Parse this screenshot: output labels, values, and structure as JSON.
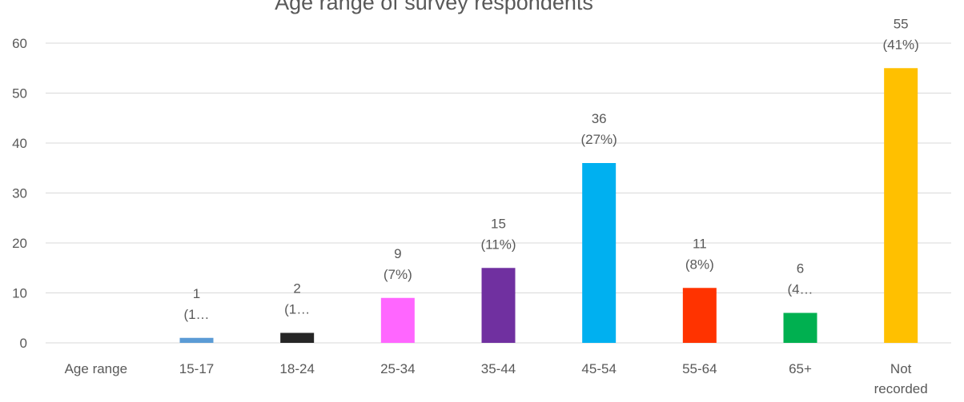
{
  "chart_data": {
    "type": "bar",
    "title": "Age range of survey respondents",
    "categories": [
      "Age range",
      "15-17",
      "18-24",
      "25-34",
      "35-44",
      "45-54",
      "55-64",
      "65+",
      "Not recorded"
    ],
    "category_lines": [
      [
        "Age range"
      ],
      [
        "15-17"
      ],
      [
        "18-24"
      ],
      [
        "25-34"
      ],
      [
        "35-44"
      ],
      [
        "45-54"
      ],
      [
        "55-64"
      ],
      [
        "65+"
      ],
      [
        "Not",
        "recorded"
      ]
    ],
    "values": [
      0,
      1,
      2,
      9,
      15,
      36,
      11,
      6,
      55
    ],
    "value_labels": [
      "",
      "1",
      "2",
      "9",
      "15",
      "36",
      "11",
      "6",
      "55"
    ],
    "percent_labels": [
      "",
      "(1…",
      "(1…",
      "(7%)",
      "(11%)",
      "(27%)",
      "(8%)",
      "(4…",
      "(41%)"
    ],
    "colors": [
      "#ffffff",
      "#5b9bd5",
      "#262626",
      "#ff66ff",
      "#7030a0",
      "#00b0f0",
      "#ff3300",
      "#00b050",
      "#ffc000"
    ],
    "y_ticks": [
      "0",
      "10",
      "20",
      "30",
      "40",
      "50",
      "60"
    ],
    "ylim": [
      0,
      60
    ],
    "xlabel": "",
    "ylabel": "",
    "grid": true,
    "legend": "none"
  }
}
